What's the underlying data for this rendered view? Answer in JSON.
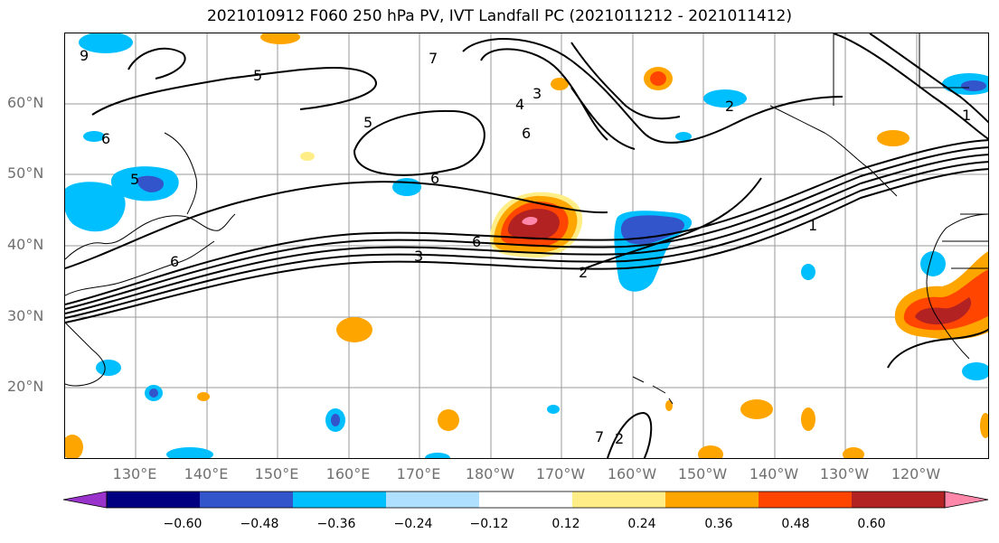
{
  "title": "2021010912 F060 250 hPa PV, IVT Landfall PC (2021011212 - 2021011412)",
  "lat_labels": [
    "60°N",
    "50°N",
    "40°N",
    "30°N",
    "20°N"
  ],
  "lon_labels": [
    "130°E",
    "140°E",
    "150°E",
    "160°E",
    "170°E",
    "180°W",
    "170°W",
    "160°W",
    "150°W",
    "140°W",
    "130°W",
    "120°W"
  ],
  "contour_labels": [
    "9",
    "5",
    "7",
    "3",
    "4",
    "6",
    "5",
    "6",
    "6",
    "5",
    "6",
    "3",
    "2",
    "6",
    "1",
    "7",
    "2",
    "1",
    "2"
  ],
  "colorbar": {
    "ticks": [
      "−0.60",
      "−0.48",
      "−0.36",
      "−0.24",
      "−0.12",
      "0.12",
      "0.24",
      "0.36",
      "0.48",
      "0.60"
    ],
    "colors": [
      "#9933cc",
      "#000080",
      "#3355cc",
      "#00bfff",
      "#b0e0ff",
      "#ffffff",
      "#ffee88",
      "#ffa500",
      "#ff4500",
      "#b22222",
      "#ff88aa"
    ]
  }
}
